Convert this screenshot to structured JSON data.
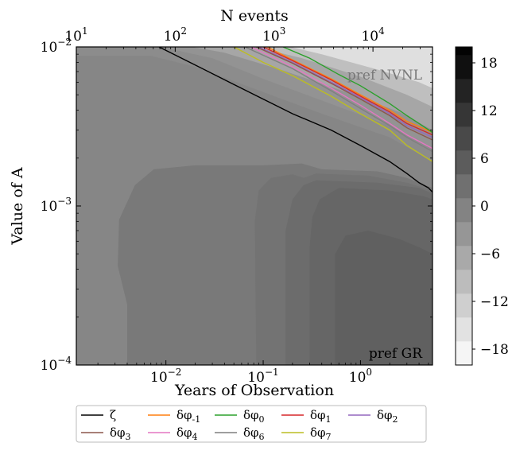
{
  "chart_data": {
    "type": "heatmap",
    "title": "",
    "xlabel": "Years of Observation",
    "x2label": "N events",
    "ylabel": "Value of A",
    "x_scale": "log",
    "y_scale": "log",
    "xlim": [
      0.0012,
      5.5
    ],
    "ylim": [
      0.0001,
      0.01
    ],
    "x2lim": [
      10,
      40000
    ],
    "x_ticks": [
      {
        "label": "10^-2",
        "value": 0.01
      },
      {
        "label": "10^-1",
        "value": 0.1
      },
      {
        "label": "10^0",
        "value": 1
      }
    ],
    "x2_ticks": [
      {
        "label": "10^1",
        "value": 10
      },
      {
        "label": "10^2",
        "value": 100
      },
      {
        "label": "10^3",
        "value": 1000
      },
      {
        "label": "10^4",
        "value": 10000
      }
    ],
    "y_ticks": [
      {
        "label": "10^-2",
        "value": 0.01
      },
      {
        "label": "10^-3",
        "value": 0.001
      },
      {
        "label": "10^-4",
        "value": 0.0001
      }
    ],
    "colorbar": {
      "min": -20,
      "max": 20,
      "step": 3,
      "ticks": [
        "18",
        "12",
        "6",
        "0",
        "−6",
        "−12",
        "−18"
      ],
      "tick_values": [
        18,
        12,
        6,
        0,
        -6,
        -12,
        -18
      ]
    },
    "annotations": [
      {
        "text": "pref NVNL",
        "x": 3.5,
        "y": 0.0075
      },
      {
        "text": "pref GR",
        "x": 3.0,
        "y": 0.000125
      }
    ],
    "regions": [
      {
        "level": -1,
        "poly": [
          [
            0.0012,
            0.0001
          ],
          [
            0.0012,
            0.0088
          ],
          [
            0.007,
            0.0088
          ],
          [
            0.02,
            0.0075
          ],
          [
            0.1,
            0.0052
          ],
          [
            0.4,
            0.0038
          ],
          [
            2,
            0.0027
          ],
          [
            5.5,
            0.0019
          ],
          [
            5.5,
            0.0001
          ]
        ]
      },
      {
        "level": 1,
        "poly": [
          [
            0.004,
            0.0001
          ],
          [
            0.004,
            0.00024
          ],
          [
            0.0032,
            0.00042
          ],
          [
            0.0033,
            0.00082
          ],
          [
            0.0048,
            0.00135
          ],
          [
            0.0075,
            0.0017
          ],
          [
            0.02,
            0.0018
          ],
          [
            0.1,
            0.0018
          ],
          [
            0.25,
            0.00185
          ],
          [
            0.4,
            0.0017
          ],
          [
            1.5,
            0.00165
          ],
          [
            3,
            0.0015
          ],
          [
            5.5,
            0.0013
          ],
          [
            5.5,
            0.0001
          ]
        ]
      },
      {
        "level": 2,
        "poly": [
          [
            0.085,
            0.0001
          ],
          [
            0.082,
            0.0008
          ],
          [
            0.09,
            0.00125
          ],
          [
            0.12,
            0.0015
          ],
          [
            0.2,
            0.00158
          ],
          [
            0.26,
            0.0015
          ],
          [
            0.35,
            0.0016
          ],
          [
            1.2,
            0.00155
          ],
          [
            3,
            0.0014
          ],
          [
            5.5,
            0.00125
          ],
          [
            5.5,
            0.0001
          ]
        ]
      },
      {
        "level": 3,
        "poly": [
          [
            0.17,
            0.0001
          ],
          [
            0.17,
            0.0007
          ],
          [
            0.2,
            0.0011
          ],
          [
            0.26,
            0.00135
          ],
          [
            0.35,
            0.00145
          ],
          [
            1.5,
            0.0014
          ],
          [
            4,
            0.0013
          ],
          [
            5.5,
            0.0012
          ],
          [
            5.5,
            0.0001
          ]
        ]
      },
      {
        "level": 4,
        "poly": [
          [
            0.3,
            0.0001
          ],
          [
            0.3,
            0.00055
          ],
          [
            0.32,
            0.00085
          ],
          [
            0.38,
            0.0011
          ],
          [
            0.6,
            0.0013
          ],
          [
            2,
            0.00125
          ],
          [
            4.5,
            0.00115
          ],
          [
            5.5,
            0.0011
          ],
          [
            5.5,
            0.0001
          ]
        ]
      },
      {
        "level": 5,
        "poly": [
          [
            0.55,
            0.0001
          ],
          [
            0.55,
            0.0005
          ],
          [
            0.7,
            0.00065
          ],
          [
            1.2,
            0.0007
          ],
          [
            2.5,
            0.00062
          ],
          [
            4,
            0.00055
          ],
          [
            5.5,
            0.0005
          ],
          [
            5.5,
            0.0001
          ]
        ]
      },
      {
        "level": -3,
        "poly": [
          [
            0.001,
            0.012
          ],
          [
            0.001,
            0.0099
          ],
          [
            0.0095,
            0.0099
          ],
          [
            0.03,
            0.0085
          ],
          [
            0.1,
            0.0063
          ],
          [
            0.4,
            0.0046
          ],
          [
            2,
            0.0032
          ],
          [
            5.5,
            0.0023
          ],
          [
            5.5,
            0.012
          ]
        ]
      },
      {
        "level": -6,
        "poly": [
          [
            0.001,
            0.012
          ],
          [
            0.001,
            0.0105
          ],
          [
            0.012,
            0.0105
          ],
          [
            0.04,
            0.0092
          ],
          [
            0.15,
            0.0072
          ],
          [
            0.6,
            0.0054
          ],
          [
            2.5,
            0.0039
          ],
          [
            5.5,
            0.003
          ],
          [
            5.5,
            0.012
          ]
        ]
      },
      {
        "level": -10,
        "poly": [
          [
            0.001,
            0.012
          ],
          [
            0.018,
            0.012
          ],
          [
            0.06,
            0.0105
          ],
          [
            0.25,
            0.0085
          ],
          [
            1,
            0.0065
          ],
          [
            3,
            0.005
          ],
          [
            5.5,
            0.0042
          ],
          [
            5.5,
            0.012
          ]
        ]
      },
      {
        "level": -15,
        "poly": [
          [
            0.03,
            0.012
          ],
          [
            0.1,
            0.011
          ],
          [
            0.4,
            0.009
          ],
          [
            1.5,
            0.0072
          ],
          [
            4,
            0.006
          ],
          [
            5.5,
            0.0055
          ],
          [
            5.5,
            0.012
          ]
        ]
      }
    ],
    "series": [
      {
        "name": "ζ",
        "color": "#000000",
        "x": [
          0.0085,
          0.02,
          0.05,
          0.1,
          0.2,
          0.5,
          1,
          2,
          3,
          4,
          5,
          5.5
        ],
        "y": [
          0.01,
          0.0077,
          0.0058,
          0.0047,
          0.0038,
          0.003,
          0.0024,
          0.0019,
          0.0016,
          0.0014,
          0.0013,
          0.00122
        ]
      },
      {
        "name": "δφ₋₁",
        "color": "#ff7f0e",
        "x": [
          0.11,
          0.2,
          0.5,
          1,
          2,
          3,
          5.5
        ],
        "y": [
          0.01,
          0.0083,
          0.0063,
          0.005,
          0.004,
          0.0034,
          0.0029
        ]
      },
      {
        "name": "δφ₀",
        "color": "#2ca02c",
        "x": [
          0.16,
          0.3,
          0.6,
          1,
          2,
          3,
          4,
          5.5
        ],
        "y": [
          0.01,
          0.0085,
          0.0067,
          0.0057,
          0.0044,
          0.0037,
          0.0033,
          0.0029
        ]
      },
      {
        "name": "δφ₁",
        "color": "#d62728",
        "x": [
          0.1,
          0.2,
          0.5,
          1,
          2,
          3,
          5.5
        ],
        "y": [
          0.01,
          0.0082,
          0.0062,
          0.0049,
          0.0039,
          0.0033,
          0.0028
        ]
      },
      {
        "name": "δφ₂",
        "color": "#9467bd",
        "x": [
          0.09,
          0.2,
          0.5,
          1,
          2,
          3,
          5.5
        ],
        "y": [
          0.01,
          0.008,
          0.006,
          0.0048,
          0.0038,
          0.0032,
          0.0027
        ]
      },
      {
        "name": "δφ₃",
        "color": "#8c564b",
        "x": [
          0.085,
          0.2,
          0.5,
          1,
          2,
          3,
          5.5
        ],
        "y": [
          0.01,
          0.0079,
          0.0059,
          0.0047,
          0.0037,
          0.0031,
          0.0026
        ]
      },
      {
        "name": "δφ₄",
        "color": "#e377c2",
        "x": [
          0.075,
          0.2,
          0.5,
          1,
          2,
          3,
          5.5
        ],
        "y": [
          0.01,
          0.0075,
          0.0055,
          0.0043,
          0.0033,
          0.0028,
          0.0023
        ]
      },
      {
        "name": "δφ₆",
        "color": "#7f7f7f",
        "x": [
          0.065,
          0.2,
          0.5,
          1,
          2,
          3,
          5.5
        ],
        "y": [
          0.01,
          0.0073,
          0.0053,
          0.0041,
          0.0032,
          0.0027,
          0.0022
        ]
      },
      {
        "name": "δφ₇",
        "color": "#bcbd22",
        "x": [
          0.05,
          0.1,
          0.2,
          0.5,
          1,
          2,
          3,
          5.5
        ],
        "y": [
          0.01,
          0.008,
          0.0066,
          0.0049,
          0.0038,
          0.003,
          0.0024,
          0.0019
        ]
      }
    ]
  },
  "legend": {
    "items": [
      {
        "label": "ζ",
        "color": "#000000"
      },
      {
        "label": "δφ-1",
        "color": "#ff7f0e"
      },
      {
        "label": "δφ0",
        "color": "#2ca02c"
      },
      {
        "label": "δφ1",
        "color": "#d62728"
      },
      {
        "label": "δφ2",
        "color": "#9467bd"
      },
      {
        "label": "δφ3",
        "color": "#8c564b"
      },
      {
        "label": "δφ4",
        "color": "#e377c2"
      },
      {
        "label": "δφ6",
        "color": "#7f7f7f"
      },
      {
        "label": "δφ7",
        "color": "#bcbd22"
      }
    ]
  }
}
